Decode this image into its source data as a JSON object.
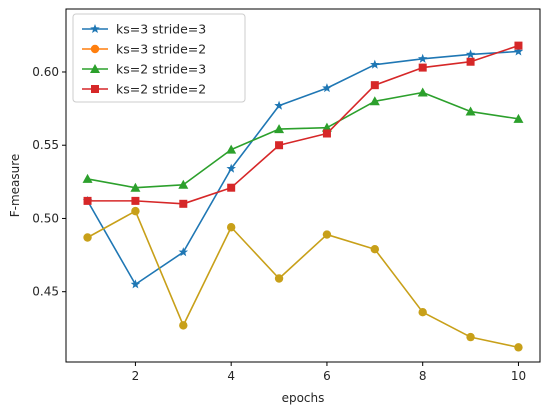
{
  "chart_data": {
    "type": "line",
    "xlabel": "epochs",
    "ylabel": "F-measure",
    "xlim": [
      0.55,
      10.45
    ],
    "ylim": [
      0.402,
      0.643
    ],
    "xticks": [
      2,
      4,
      6,
      8,
      10
    ],
    "yticks": [
      0.45,
      0.5,
      0.55,
      0.6
    ],
    "ytick_labels": [
      "0.45",
      "0.50",
      "0.55",
      "0.60"
    ],
    "xtick_labels": [
      "2",
      "4",
      "6",
      "8",
      "10"
    ],
    "grid": false,
    "legend_position": "top-left",
    "x": [
      1,
      2,
      3,
      4,
      5,
      6,
      7,
      8,
      9,
      10
    ],
    "series": [
      {
        "name": "ks=3 stride=3",
        "color": "#1f77b4",
        "marker": "star",
        "values": [
          0.512,
          0.455,
          0.477,
          0.534,
          0.577,
          0.589,
          0.605,
          0.609,
          0.612,
          0.614
        ]
      },
      {
        "name": "ks=3 stride=2",
        "color": "#ff7f0e",
        "drawn_color": "#c8a019",
        "marker": "circle",
        "values": [
          0.487,
          0.505,
          0.427,
          0.494,
          0.459,
          0.489,
          0.479,
          0.436,
          0.419,
          0.412
        ]
      },
      {
        "name": "ks=2 stride=3",
        "color": "#2ca02c",
        "marker": "triangle",
        "values": [
          0.527,
          0.521,
          0.523,
          0.547,
          0.561,
          0.562,
          0.58,
          0.586,
          0.573,
          0.568
        ]
      },
      {
        "name": "ks=2 stride=2",
        "color": "#d62728",
        "marker": "square",
        "values": [
          0.512,
          0.512,
          0.51,
          0.521,
          0.55,
          0.558,
          0.591,
          0.603,
          0.607,
          0.618
        ]
      }
    ]
  }
}
